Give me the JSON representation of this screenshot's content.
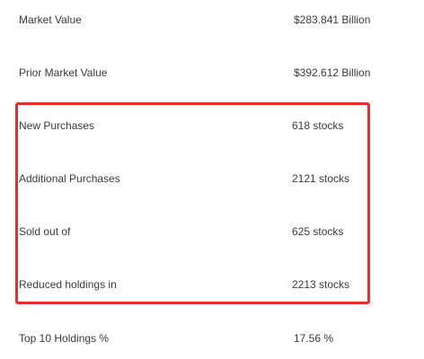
{
  "stats": [
    {
      "label": "Market Value",
      "value": "$283.841 Billion"
    },
    {
      "label": "Prior Market Value",
      "value": "$392.612 Billion"
    },
    {
      "label": "New Purchases",
      "value": "618 stocks"
    },
    {
      "label": "Additional Purchases",
      "value": "2121 stocks"
    },
    {
      "label": "Sold out of",
      "value": "625 stocks"
    },
    {
      "label": "Reduced holdings in",
      "value": "2213 stocks"
    },
    {
      "label": "Top 10 Holdings %",
      "value": "17.56 %"
    }
  ],
  "highlight": {
    "color": "#e0312c",
    "covers": [
      "New Purchases",
      "Additional Purchases",
      "Sold out of",
      "Reduced holdings in"
    ]
  }
}
